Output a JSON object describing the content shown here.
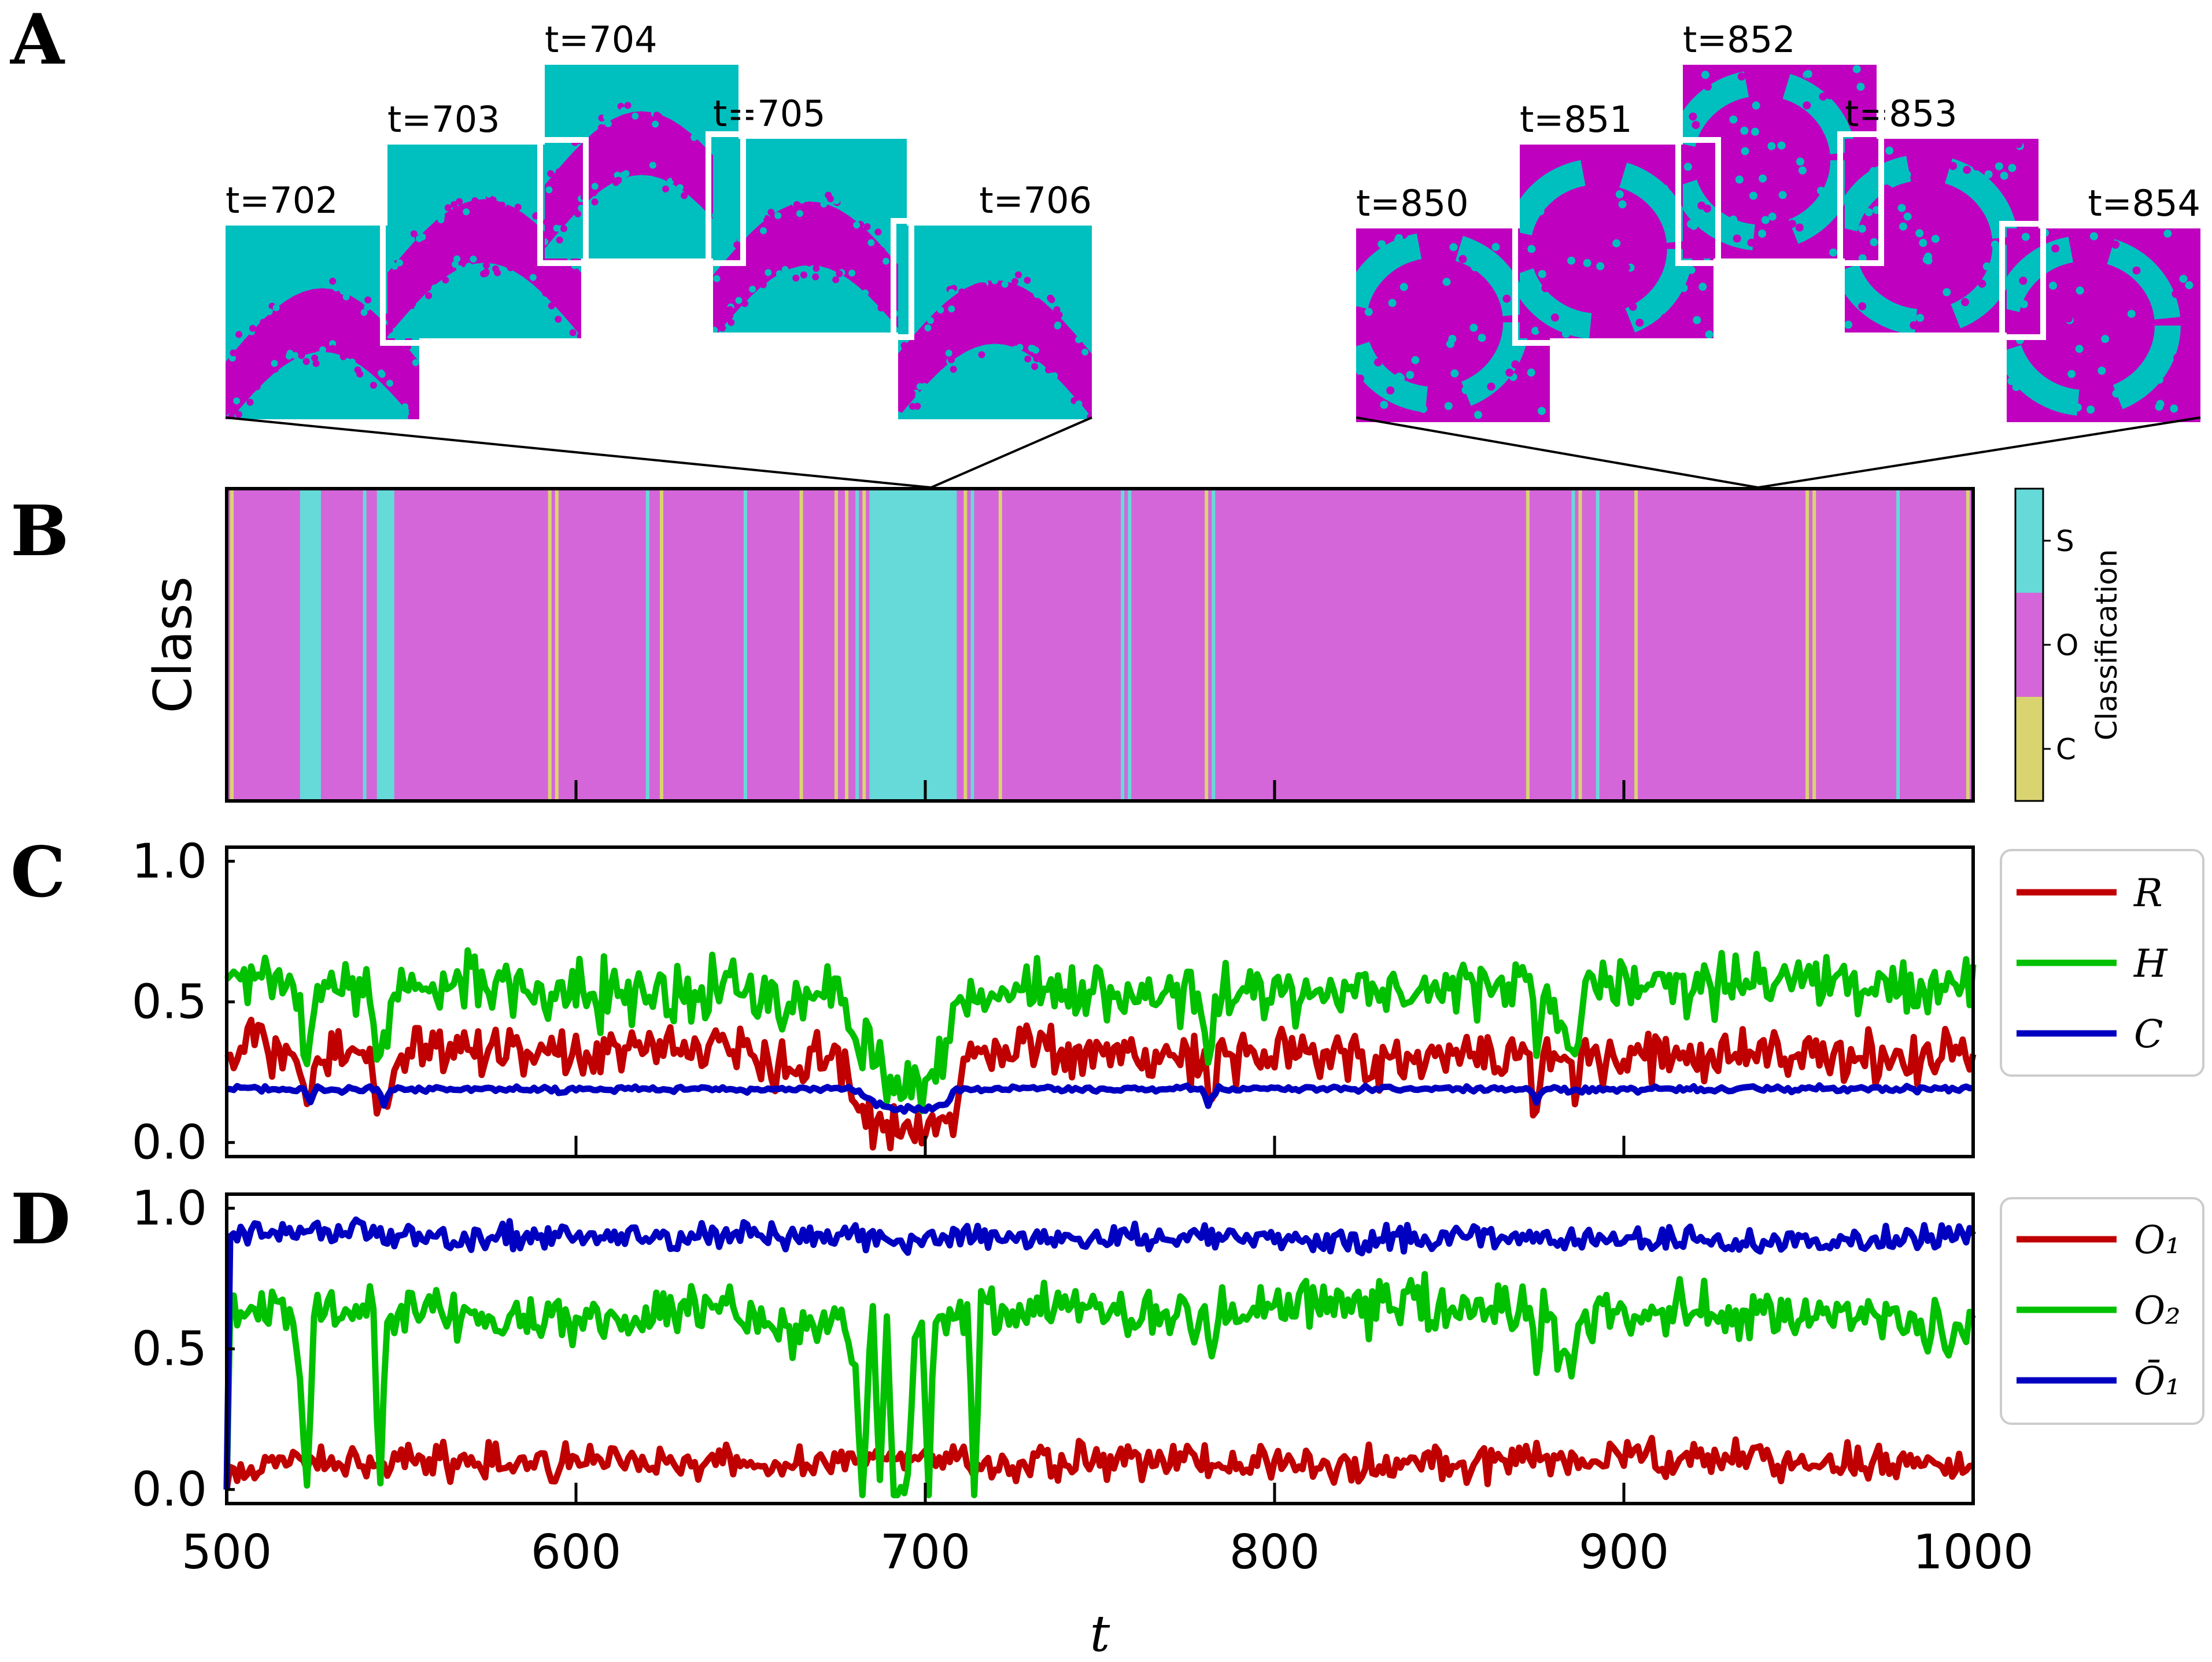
{
  "panel_letters": {
    "a": "A",
    "b": "B",
    "c": "C",
    "d": "D"
  },
  "colors": {
    "cyan": "#00bfbf",
    "magenta": "#bf00bf",
    "class_S": "#66d9d9",
    "class_O": "#d466d9",
    "class_C": "#d9d470",
    "R": "#c00000",
    "H": "#00c000",
    "C": "#0000c0",
    "O1": "#c00000",
    "O2": "#00c000",
    "O1bar": "#0000c0"
  },
  "snapshots": {
    "group1": [
      "t=702",
      "t=703",
      "t=704",
      "t=705",
      "t=706"
    ],
    "group2": [
      "t=850",
      "t=851",
      "t=852",
      "t=853",
      "t=854"
    ]
  },
  "chart_data": [
    {
      "id": "class",
      "type": "heatmap",
      "ylabel": "Class",
      "xlim": [
        500,
        1000
      ],
      "colorbar": {
        "label": "Classification",
        "ticks": [
          "S",
          "O",
          "C"
        ]
      },
      "default_class": "O",
      "segments": [
        {
          "class": "C",
          "start": 501,
          "end": 502
        },
        {
          "class": "S",
          "start": 521,
          "end": 527
        },
        {
          "class": "S",
          "start": 539,
          "end": 540
        },
        {
          "class": "S",
          "start": 543,
          "end": 548
        },
        {
          "class": "C",
          "start": 592,
          "end": 593
        },
        {
          "class": "C",
          "start": 594,
          "end": 595
        },
        {
          "class": "S",
          "start": 620,
          "end": 621
        },
        {
          "class": "C",
          "start": 624,
          "end": 625
        },
        {
          "class": "S",
          "start": 648,
          "end": 649
        },
        {
          "class": "C",
          "start": 664,
          "end": 665
        },
        {
          "class": "C",
          "start": 674,
          "end": 675
        },
        {
          "class": "C",
          "start": 677,
          "end": 678
        },
        {
          "class": "S",
          "start": 680,
          "end": 681
        },
        {
          "class": "C",
          "start": 682,
          "end": 683
        },
        {
          "class": "S",
          "start": 684,
          "end": 709
        },
        {
          "class": "C",
          "start": 711,
          "end": 712
        },
        {
          "class": "S",
          "start": 713,
          "end": 714
        },
        {
          "class": "C",
          "start": 721,
          "end": 722
        },
        {
          "class": "S",
          "start": 756,
          "end": 757
        },
        {
          "class": "S",
          "start": 758,
          "end": 759
        },
        {
          "class": "C",
          "start": 780,
          "end": 781
        },
        {
          "class": "S",
          "start": 782,
          "end": 783
        },
        {
          "class": "C",
          "start": 872,
          "end": 873
        },
        {
          "class": "S",
          "start": 885,
          "end": 886
        },
        {
          "class": "C",
          "start": 887,
          "end": 888
        },
        {
          "class": "S",
          "start": 892,
          "end": 893
        },
        {
          "class": "C",
          "start": 903,
          "end": 904
        },
        {
          "class": "C",
          "start": 952,
          "end": 953
        },
        {
          "class": "C",
          "start": 954,
          "end": 955
        },
        {
          "class": "S",
          "start": 978,
          "end": 979
        },
        {
          "class": "C",
          "start": 998,
          "end": 999
        }
      ]
    },
    {
      "id": "rhc",
      "type": "line",
      "xlim": [
        500,
        1000
      ],
      "ylim": [
        -0.05,
        1.05
      ],
      "yticks": [
        "0.0",
        "0.5",
        "1.0"
      ],
      "series": [
        {
          "name": "R",
          "key": "R",
          "keypoints": [
            [
              500,
              0.3
            ],
            [
              505,
              0.36
            ],
            [
              520,
              0.28
            ],
            [
              523,
              0.14
            ],
            [
              526,
              0.33
            ],
            [
              541,
              0.3
            ],
            [
              545,
              0.09
            ],
            [
              549,
              0.3
            ],
            [
              560,
              0.37
            ],
            [
              580,
              0.32
            ],
            [
              600,
              0.3
            ],
            [
              640,
              0.34
            ],
            [
              660,
              0.27
            ],
            [
              675,
              0.32
            ],
            [
              681,
              0.12
            ],
            [
              685,
              0.05
            ],
            [
              695,
              0.04
            ],
            [
              705,
              0.06
            ],
            [
              709,
              0.14
            ],
            [
              712,
              0.3
            ],
            [
              730,
              0.34
            ],
            [
              760,
              0.3
            ],
            [
              779,
              0.3
            ],
            [
              781,
              0.12
            ],
            [
              784,
              0.3
            ],
            [
              830,
              0.3
            ],
            [
              873,
              0.29
            ],
            [
              875,
              0.12
            ],
            [
              877,
              0.3
            ],
            [
              885,
              0.3
            ],
            [
              886,
              0.1
            ],
            [
              888,
              0.3
            ],
            [
              950,
              0.32
            ],
            [
              1000,
              0.3
            ]
          ],
          "noise": 0.045
        },
        {
          "name": "H",
          "key": "H",
          "keypoints": [
            [
              500,
              0.58
            ],
            [
              503,
              0.62
            ],
            [
              515,
              0.56
            ],
            [
              521,
              0.5
            ],
            [
              523,
              0.3
            ],
            [
              526,
              0.58
            ],
            [
              540,
              0.55
            ],
            [
              544,
              0.28
            ],
            [
              548,
              0.54
            ],
            [
              570,
              0.56
            ],
            [
              580,
              0.56
            ],
            [
              600,
              0.52
            ],
            [
              640,
              0.56
            ],
            [
              660,
              0.49
            ],
            [
              675,
              0.55
            ],
            [
              680,
              0.32
            ],
            [
              684,
              0.35
            ],
            [
              690,
              0.2
            ],
            [
              700,
              0.22
            ],
            [
              706,
              0.28
            ],
            [
              710,
              0.5
            ],
            [
              730,
              0.56
            ],
            [
              760,
              0.52
            ],
            [
              779,
              0.52
            ],
            [
              781,
              0.3
            ],
            [
              784,
              0.54
            ],
            [
              800,
              0.52
            ],
            [
              850,
              0.54
            ],
            [
              873,
              0.54
            ],
            [
              875,
              0.3
            ],
            [
              877,
              0.54
            ],
            [
              886,
              0.3
            ],
            [
              888,
              0.56
            ],
            [
              950,
              0.56
            ],
            [
              1000,
              0.55
            ]
          ],
          "noise": 0.055
        },
        {
          "name": "C",
          "key": "C",
          "keypoints": [
            [
              500,
              0.19
            ],
            [
              522,
              0.19
            ],
            [
              524,
              0.15
            ],
            [
              526,
              0.19
            ],
            [
              543,
              0.19
            ],
            [
              545,
              0.14
            ],
            [
              547,
              0.19
            ],
            [
              594,
              0.19
            ],
            [
              595,
              0.17
            ],
            [
              597,
              0.19
            ],
            [
              680,
              0.19
            ],
            [
              683,
              0.15
            ],
            [
              690,
              0.12
            ],
            [
              703,
              0.12
            ],
            [
              706,
              0.14
            ],
            [
              709,
              0.19
            ],
            [
              779,
              0.19
            ],
            [
              781,
              0.14
            ],
            [
              784,
              0.19
            ],
            [
              873,
              0.19
            ],
            [
              875,
              0.14
            ],
            [
              877,
              0.19
            ],
            [
              1000,
              0.19
            ]
          ],
          "noise": 0.005
        }
      ]
    },
    {
      "id": "order",
      "type": "line",
      "xlim": [
        500,
        1000
      ],
      "ylim": [
        -0.05,
        1.05
      ],
      "yticks": [
        "0.0",
        "0.5",
        "1.0"
      ],
      "xticks": [
        "500",
        "600",
        "700",
        "800",
        "900",
        "1000"
      ],
      "xlabel": "t",
      "series": [
        {
          "name": "O₁",
          "key": "O1",
          "keypoints": [
            [
              500,
              0.0
            ],
            [
              501,
              0.08
            ],
            [
              520,
              0.11
            ],
            [
              540,
              0.1
            ],
            [
              580,
              0.09
            ],
            [
              620,
              0.1
            ],
            [
              660,
              0.09
            ],
            [
              690,
              0.11
            ],
            [
              720,
              0.09
            ],
            [
              760,
              0.1
            ],
            [
              800,
              0.09
            ],
            [
              850,
              0.09
            ],
            [
              900,
              0.12
            ],
            [
              950,
              0.1
            ],
            [
              1000,
              0.09
            ]
          ],
          "noise": 0.03
        },
        {
          "name": "O₂",
          "key": "O2",
          "keypoints": [
            [
              500,
              0.0
            ],
            [
              501,
              0.64
            ],
            [
              519,
              0.64
            ],
            [
              521,
              0.38
            ],
            [
              523,
              0.0
            ],
            [
              525,
              0.64
            ],
            [
              542,
              0.63
            ],
            [
              544,
              0.0
            ],
            [
              546,
              0.62
            ],
            [
              560,
              0.62
            ],
            [
              600,
              0.6
            ],
            [
              640,
              0.64
            ],
            [
              660,
              0.58
            ],
            [
              676,
              0.6
            ],
            [
              680,
              0.4
            ],
            [
              682,
              0.0
            ],
            [
              685,
              0.62
            ],
            [
              687,
              0.0
            ],
            [
              689,
              0.62
            ],
            [
              691,
              0.0
            ],
            [
              695,
              0.0
            ],
            [
              697,
              0.62
            ],
            [
              699,
              0.6
            ],
            [
              701,
              0.0
            ],
            [
              703,
              0.62
            ],
            [
              712,
              0.62
            ],
            [
              714,
              0.0
            ],
            [
              716,
              0.64
            ],
            [
              760,
              0.64
            ],
            [
              780,
              0.6
            ],
            [
              782,
              0.4
            ],
            [
              784,
              0.64
            ],
            [
              830,
              0.66
            ],
            [
              873,
              0.62
            ],
            [
              875,
              0.4
            ],
            [
              877,
              0.64
            ],
            [
              886,
              0.42
            ],
            [
              888,
              0.64
            ],
            [
              950,
              0.62
            ],
            [
              1000,
              0.56
            ]
          ],
          "noise": 0.045
        },
        {
          "name": "Ō₁",
          "key": "O1bar",
          "keypoints": [
            [
              500,
              0.0
            ],
            [
              501,
              0.9
            ],
            [
              520,
              0.92
            ],
            [
              560,
              0.9
            ],
            [
              600,
              0.9
            ],
            [
              640,
              0.9
            ],
            [
              700,
              0.89
            ],
            [
              760,
              0.9
            ],
            [
              800,
              0.88
            ],
            [
              850,
              0.9
            ],
            [
              900,
              0.89
            ],
            [
              950,
              0.88
            ],
            [
              1000,
              0.9
            ]
          ],
          "noise": 0.022
        }
      ]
    }
  ]
}
